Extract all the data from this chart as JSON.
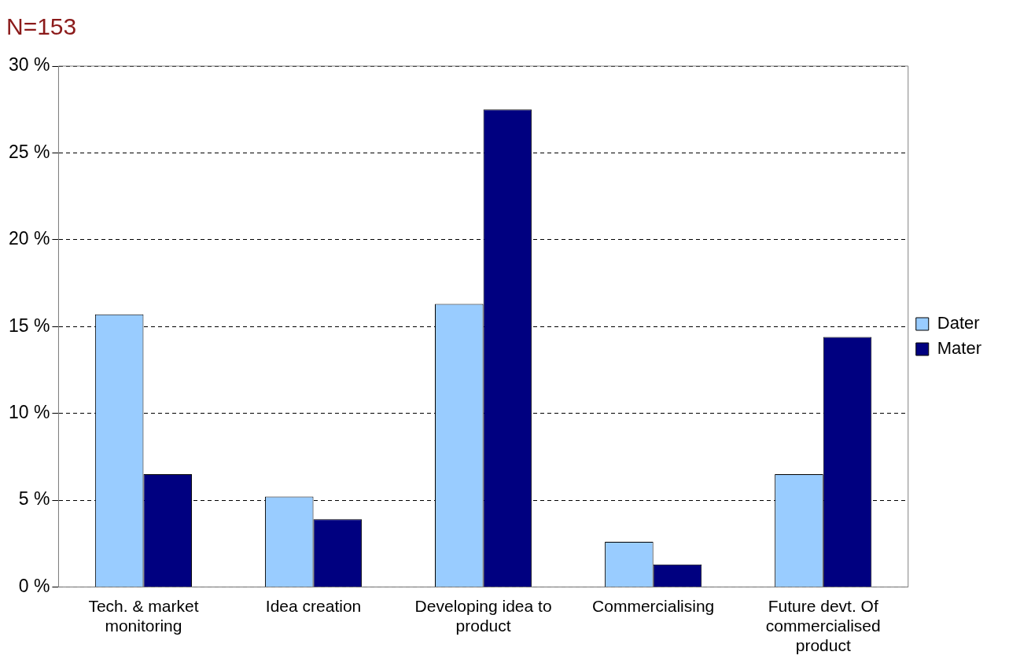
{
  "chart_data": {
    "type": "bar",
    "title": "N=153",
    "categories": [
      "Tech. & market monitoring",
      "Idea creation",
      "Developing idea to product",
      "Commercialising",
      "Future devt. Of commercialised product"
    ],
    "series": [
      {
        "name": "Dater",
        "color": "#99ccff",
        "values": [
          15.7,
          5.2,
          16.3,
          2.6,
          6.5
        ]
      },
      {
        "name": "Mater",
        "color": "#000080",
        "values": [
          6.5,
          3.9,
          27.5,
          1.3,
          14.4
        ]
      }
    ],
    "ylim": [
      0,
      30
    ],
    "yticks": [
      {
        "value": 0,
        "label": "0 %"
      },
      {
        "value": 5,
        "label": "5 %"
      },
      {
        "value": 10,
        "label": "10 %"
      },
      {
        "value": 15,
        "label": "15 %"
      },
      {
        "value": 20,
        "label": "20 %"
      },
      {
        "value": 25,
        "label": "25 %"
      },
      {
        "value": 30,
        "label": "30 %"
      }
    ],
    "grid": "y",
    "legend": "right"
  }
}
